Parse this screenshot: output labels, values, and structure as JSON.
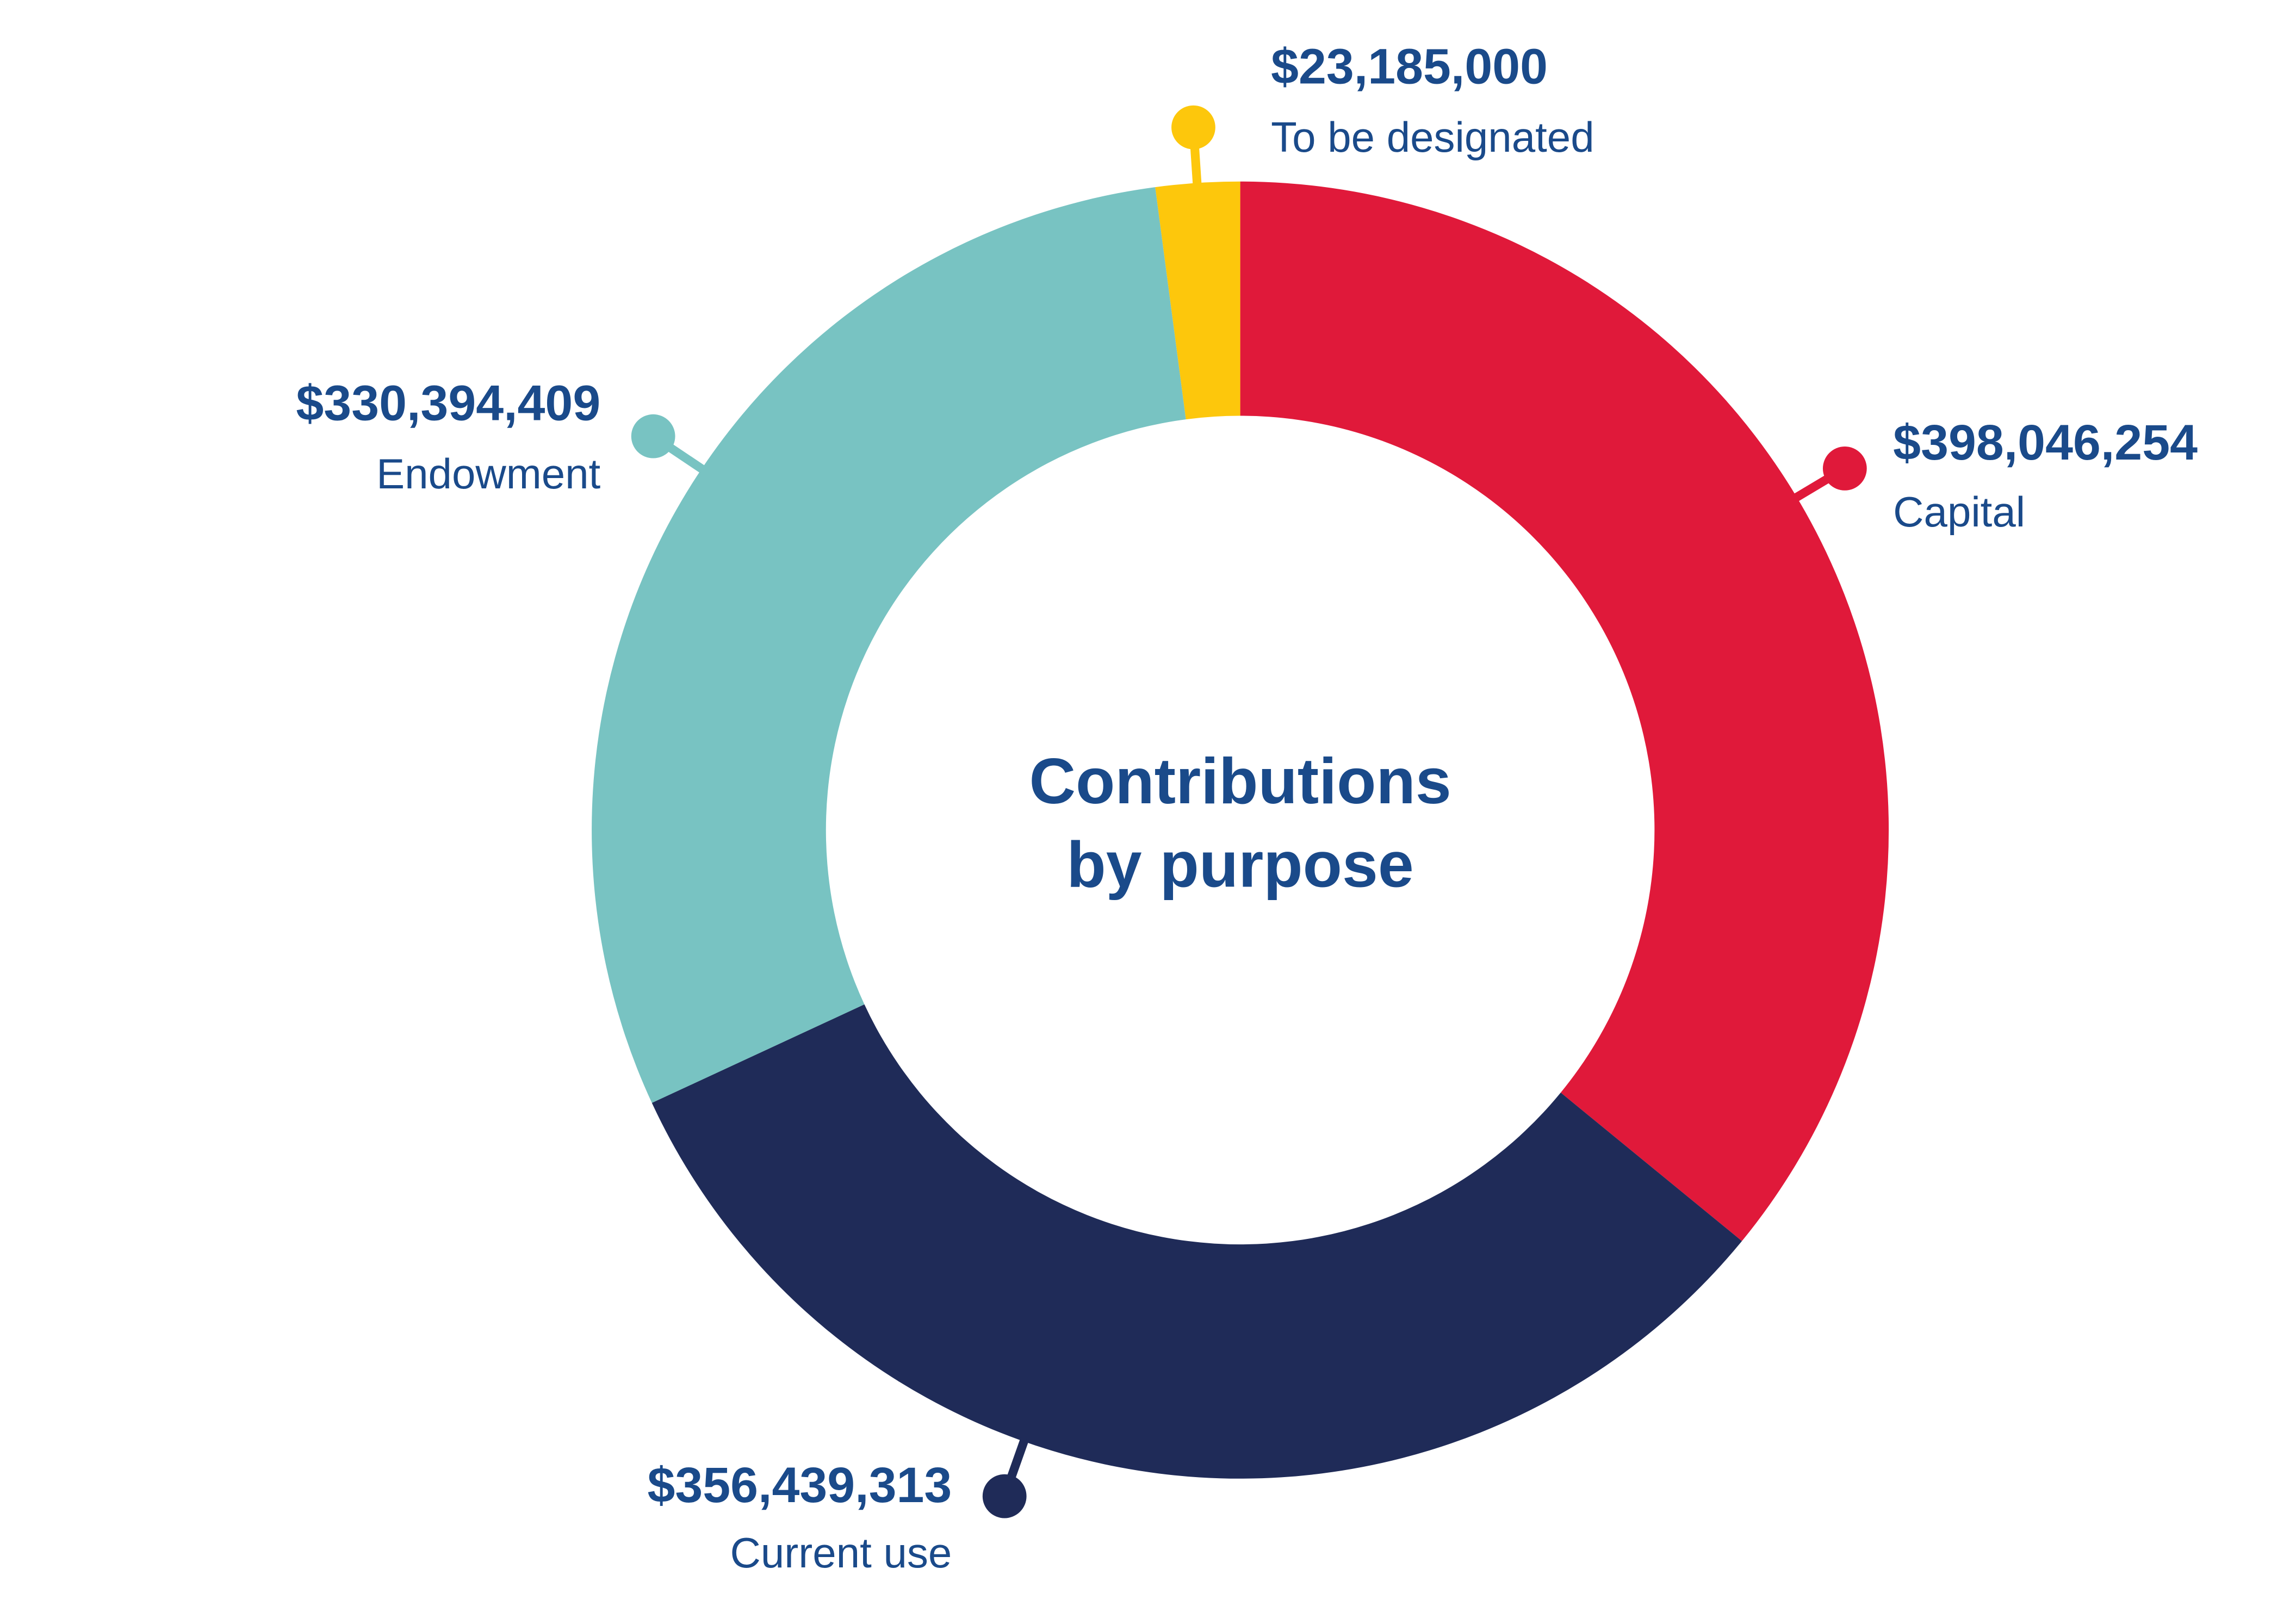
{
  "chart_data": {
    "type": "donut",
    "title": [
      "Contributions",
      "by purpose"
    ],
    "categories": [
      "Capital",
      "Current use",
      "Endowment",
      "To be designated"
    ],
    "values": [
      398046254,
      356439313,
      330394409,
      23185000
    ],
    "value_labels": [
      "$398,046,254",
      "$356,439,313",
      "$330,394,409",
      "$23,185,000"
    ],
    "colors": [
      "#e0193a",
      "#1f2b58",
      "#78c3c2",
      "#fdc70c"
    ]
  }
}
